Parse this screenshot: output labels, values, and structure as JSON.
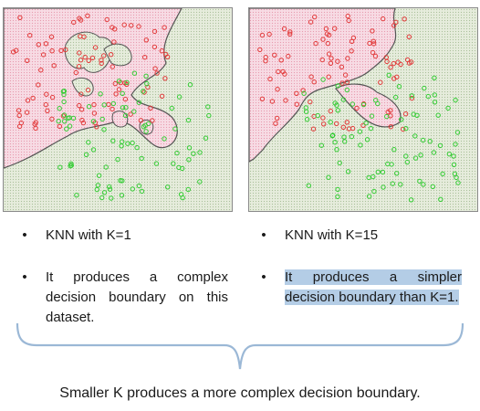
{
  "left_panel": {
    "bullets": [
      {
        "text": "KNN with K=1",
        "highlighted": false
      },
      {
        "text": "It produces a complex decision boundary on this dataset.",
        "highlighted": false
      }
    ]
  },
  "right_panel": {
    "bullets": [
      {
        "text": "KNN with K=15",
        "highlighted": false
      },
      {
        "text": "It produces a simpler decision boundary than K=1.",
        "highlighted": true
      }
    ]
  },
  "summary": "Smaller K produces a more complex decision boundary.",
  "bullet_symbol": "•",
  "colors": {
    "class_red": "#e23a3a",
    "class_green": "#33cc33",
    "region_red": "#f6d6e0",
    "region_green": "#e3ead8",
    "boundary": "#555555",
    "highlight": "#b4cde6",
    "brace": "#9bb8d6"
  }
}
